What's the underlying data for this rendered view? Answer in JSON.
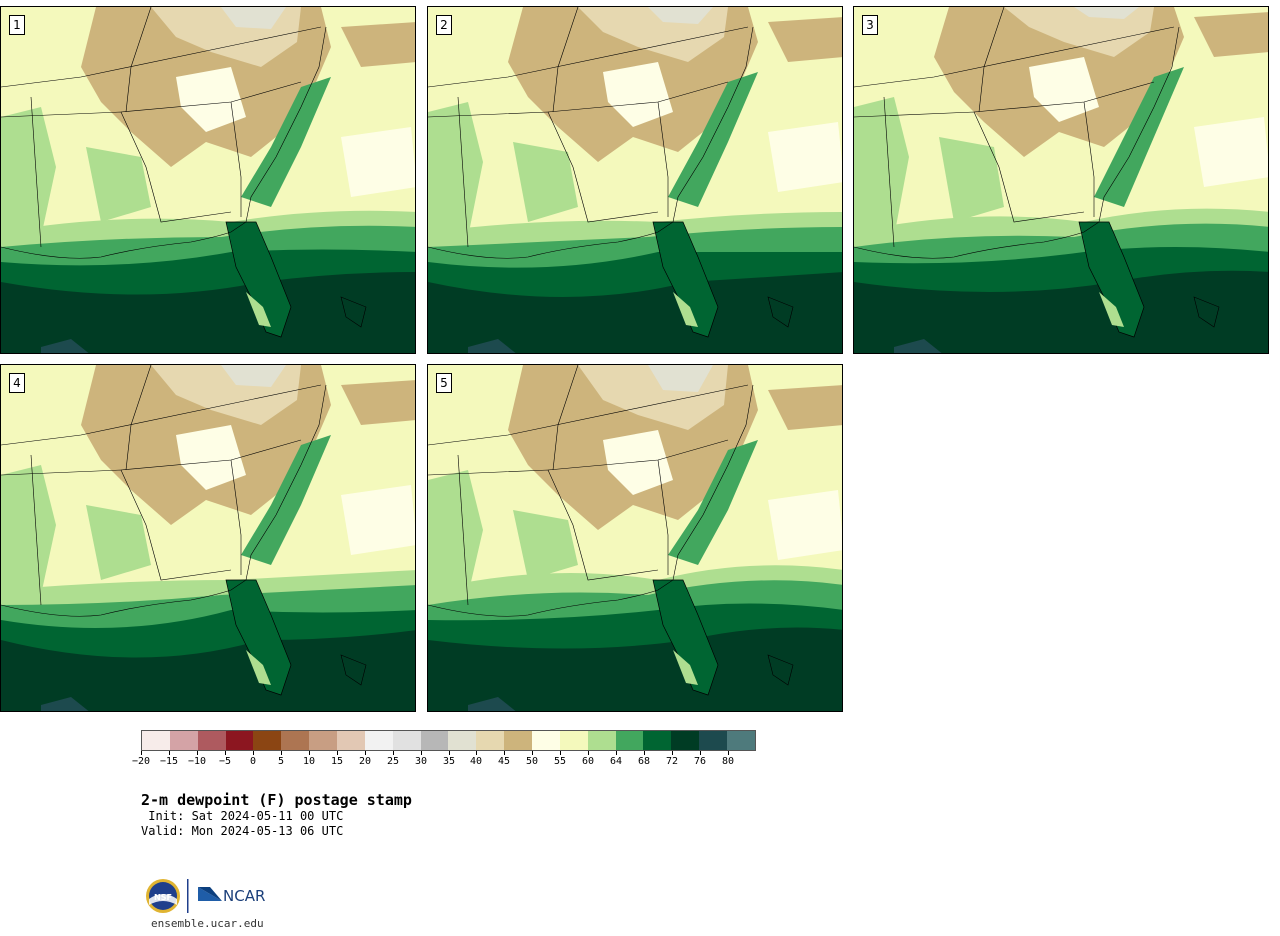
{
  "panels": [
    {
      "label": "1"
    },
    {
      "label": "2"
    },
    {
      "label": "3"
    },
    {
      "label": "4"
    },
    {
      "label": "5"
    }
  ],
  "colorbar": {
    "colors": [
      "#f7ecea",
      "#d4a3a6",
      "#ae5a5f",
      "#8c1620",
      "#8b4513",
      "#ad7552",
      "#c89e83",
      "#e2c8b4",
      "#f2f2f2",
      "#e1e1e1",
      "#b7b7b7",
      "#e1e1d2",
      "#e6d8b0",
      "#cdb47c",
      "#fefee6",
      "#f4f9bc",
      "#aede90",
      "#42a75e",
      "#006532",
      "#003c24",
      "#1d4a4e",
      "#4e7a7c"
    ],
    "tick_labels": [
      "−20",
      "−15",
      "−10",
      "−5",
      "0",
      "5",
      "10",
      "15",
      "20",
      "25",
      "30",
      "35",
      "40",
      "45",
      "50",
      "55",
      "60",
      "64",
      "68",
      "72",
      "76",
      "80"
    ]
  },
  "title": "2-m dewpoint (F) postage stamp",
  "init": " Init: Sat 2024-05-11 00 UTC",
  "valid": "Valid: Mon 2024-05-13 06 UTC",
  "footer": {
    "logo_nsf": "NSF",
    "logo_ncar": "NCAR",
    "url": "ensemble.ucar.edu"
  }
}
